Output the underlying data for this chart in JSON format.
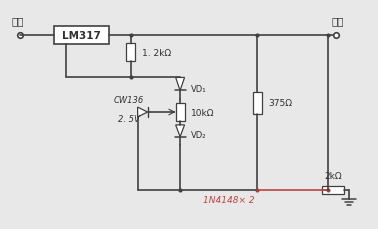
{
  "bg_color": "#e8e8e8",
  "line_color": "#404040",
  "text_color": "#303030",
  "red_color": "#bb4444",
  "red_dot_color": "#994444",
  "input_label": "输入",
  "output_label": "输出",
  "lm317_label": "LM317",
  "r1_label": "1. 2kΩ",
  "r2_label": "375Ω",
  "r3_label": "10kΩ",
  "r4_label": "2kΩ",
  "vd1_label": "VD₁",
  "vd2_label": "VD₂",
  "cw_label1": "CW136",
  "cw_label2": "2. 5V",
  "diode_label": "1N4148× 2"
}
